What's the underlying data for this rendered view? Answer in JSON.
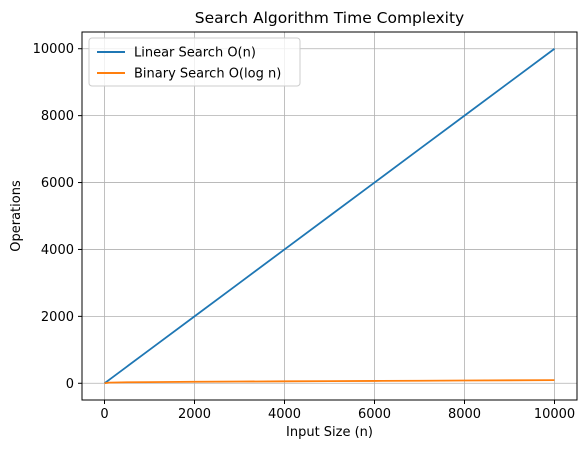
{
  "chart_data": {
    "type": "line",
    "title": "Search Algorithm Time Complexity",
    "xlabel": "Input Size (n)",
    "ylabel": "Operations",
    "xlim": [
      -500,
      10500
    ],
    "ylim": [
      -500,
      10500
    ],
    "xticks": [
      0,
      2000,
      4000,
      6000,
      8000,
      10000
    ],
    "yticks": [
      0,
      2000,
      4000,
      6000,
      8000,
      10000
    ],
    "xtick_labels": [
      "0",
      "2000",
      "4000",
      "6000",
      "8000",
      "10000"
    ],
    "ytick_labels": [
      "0",
      "2000",
      "4000",
      "6000",
      "8000",
      "10000"
    ],
    "grid": true,
    "legend_position": "top-left",
    "series": [
      {
        "name": "Linear Search O(n)",
        "color": "#1f77b4",
        "x": [
          1,
          100,
          500,
          1000,
          2000,
          3000,
          4000,
          5000,
          6000,
          7000,
          8000,
          9000,
          10000
        ],
        "y": [
          1,
          100,
          500,
          1000,
          2000,
          3000,
          4000,
          5000,
          6000,
          7000,
          8000,
          9000,
          10000
        ]
      },
      {
        "name": "Binary Search O(log n)",
        "color": "#ff7f0e",
        "x": [
          1,
          100,
          500,
          1000,
          2000,
          3000,
          4000,
          5000,
          6000,
          7000,
          8000,
          9000,
          10000
        ],
        "y": [
          1,
          20,
          30,
          35,
          45,
          52,
          58,
          64,
          70,
          76,
          82,
          88,
          95
        ]
      }
    ]
  }
}
